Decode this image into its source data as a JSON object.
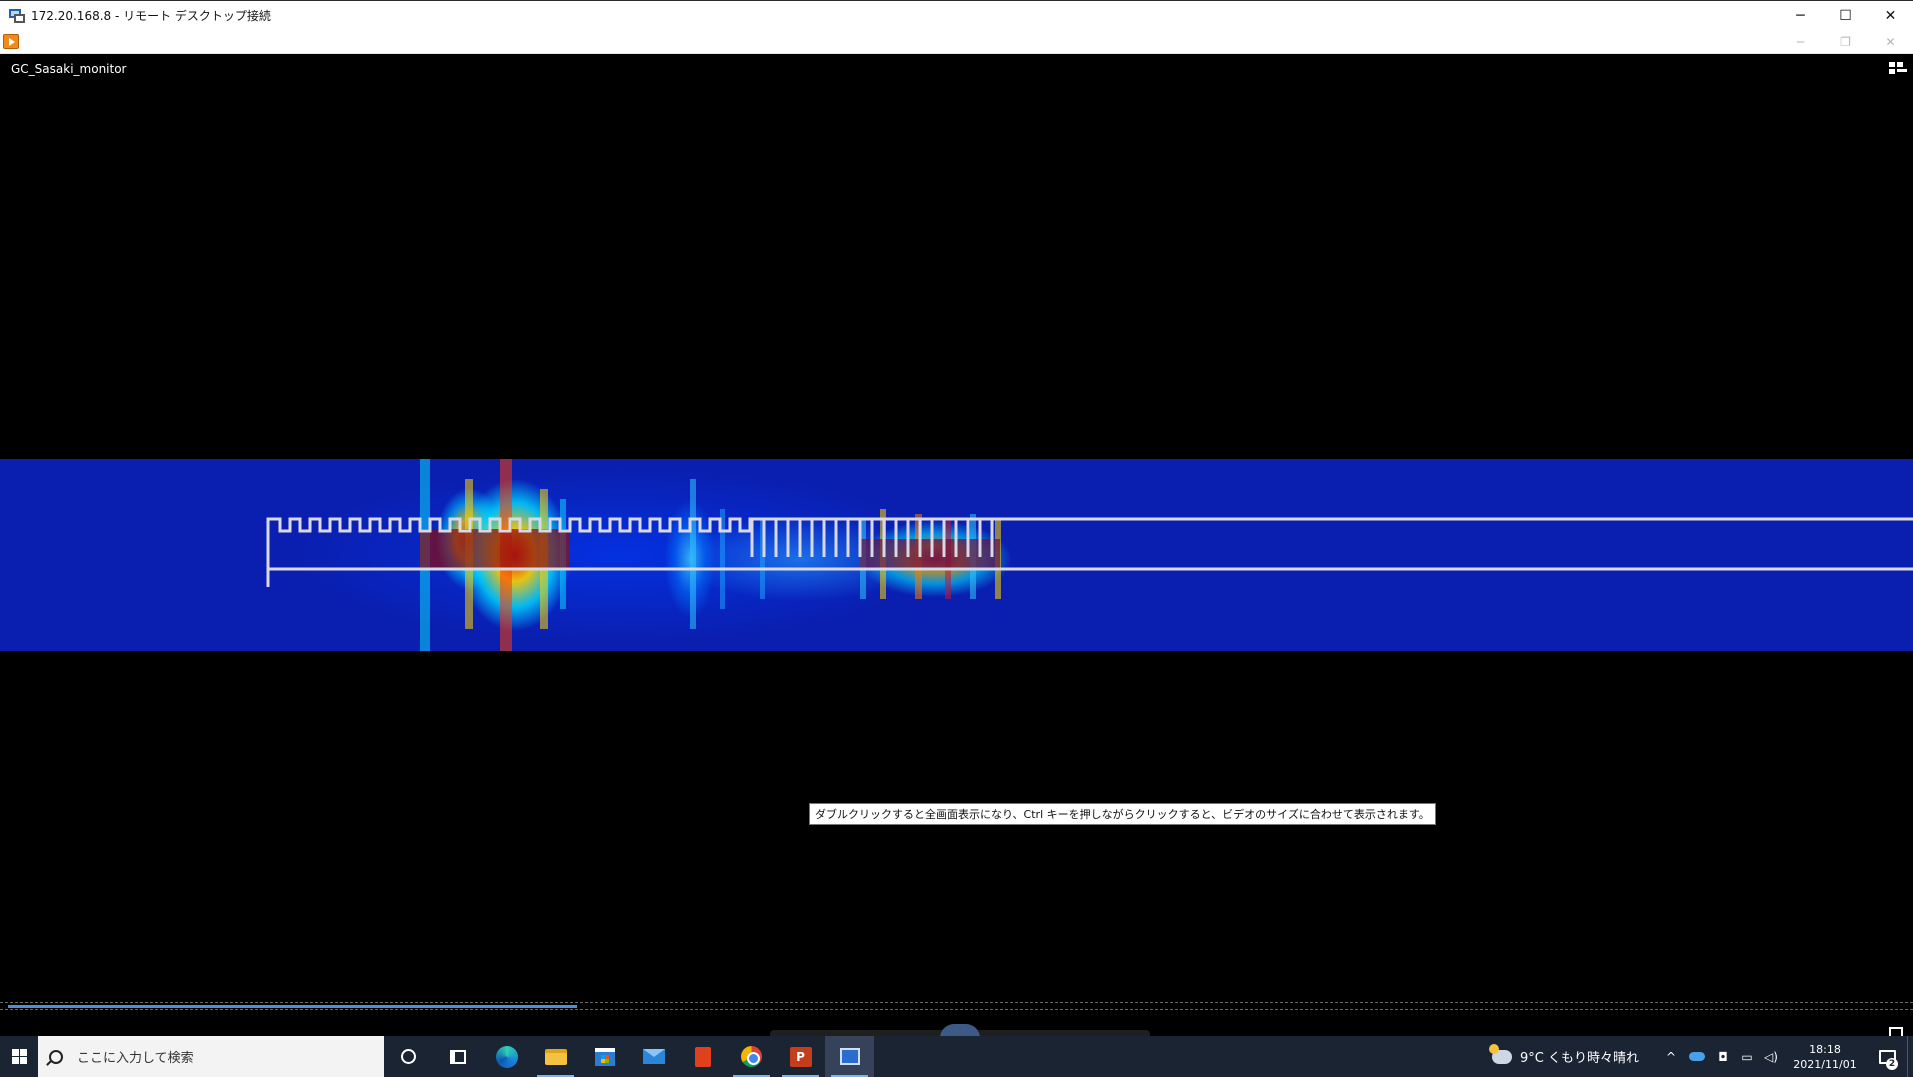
{
  "window": {
    "title": "172.20.168.8 - リモート デスクトップ接続",
    "minimize_glyph": "─",
    "maximize_glyph": "☐",
    "close_glyph": "✕"
  },
  "app_window": {
    "minimize_glyph": "─",
    "restore_glyph": "❐",
    "close_glyph": "✕"
  },
  "video": {
    "monitor_name": "GC_Sasaki_monitor",
    "tooltip": "ダブルクリックすると全画面表示になり、Ctrl キーを押しながらクリックすると、ビデオのサイズに合わせて表示されます。",
    "progress_fraction": 0.3
  },
  "taskbar": {
    "search_placeholder": "ここに入力して検索",
    "apps": [
      {
        "name": "cortana",
        "icon": "cortana-icon"
      },
      {
        "name": "task-view",
        "icon": "task-view-icon"
      },
      {
        "name": "edge",
        "icon": "edge-icon"
      },
      {
        "name": "file-explorer",
        "icon": "folder-icon"
      },
      {
        "name": "store",
        "icon": "store-icon"
      },
      {
        "name": "mail",
        "icon": "mail-icon"
      },
      {
        "name": "office",
        "icon": "office-icon"
      },
      {
        "name": "chrome",
        "icon": "chrome-icon"
      },
      {
        "name": "powerpoint",
        "icon": "powerpoint-icon",
        "label": "P"
      },
      {
        "name": "remote-desktop",
        "icon": "remote-desktop-icon"
      }
    ],
    "weather": "9°C くもり時々晴れ",
    "tray_chevron": "^",
    "time": "18:18",
    "date": "2021/11/01",
    "notification_count": "2"
  }
}
